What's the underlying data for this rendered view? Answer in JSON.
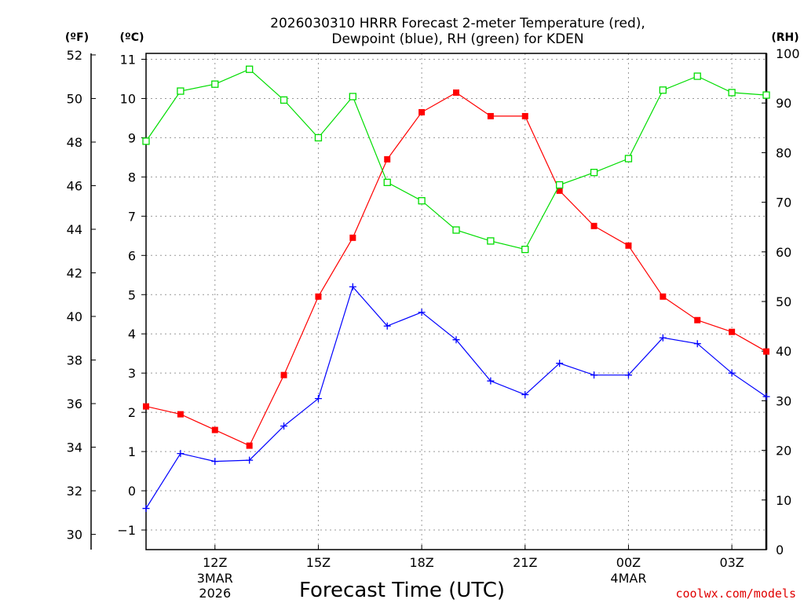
{
  "chart_data": {
    "type": "line",
    "title_line1": "2026030310 HRRR Forecast 2-meter Temperature (red),",
    "title_line2": "Dewpoint (blue), RH (green) for KDEN",
    "xlabel": "Forecast Time (UTC)",
    "watermark": "coolwx.com/models",
    "unit_labels": {
      "fahrenheit": "(ºF)",
      "celsius": "(ºC)",
      "rh": "(RH)"
    },
    "x_range": [
      9.0,
      27.0
    ],
    "celsius_range": [
      -1.5,
      11.15
    ],
    "rh_range": [
      0,
      100
    ],
    "celsius_ticks": [
      -1,
      0,
      1,
      2,
      3,
      4,
      5,
      6,
      7,
      8,
      9,
      10,
      11
    ],
    "fahrenheit_ticks": [
      30,
      32,
      34,
      36,
      38,
      40,
      42,
      44,
      46,
      48,
      50,
      52
    ],
    "rh_ticks": [
      0,
      10,
      20,
      30,
      40,
      50,
      60,
      70,
      80,
      90,
      100
    ],
    "x_ticks": [
      {
        "x": 11,
        "label": "12Z",
        "sub1": "3MAR",
        "sub2": "2026"
      },
      {
        "x": 14,
        "label": "15Z",
        "sub1": "",
        "sub2": ""
      },
      {
        "x": 17,
        "label": "18Z",
        "sub1": "",
        "sub2": ""
      },
      {
        "x": 20,
        "label": "21Z",
        "sub1": "",
        "sub2": ""
      },
      {
        "x": 23,
        "label": "00Z",
        "sub1": "4MAR",
        "sub2": ""
      },
      {
        "x": 26,
        "label": "03Z",
        "sub1": "",
        "sub2": ""
      }
    ],
    "x": [
      9,
      10,
      11,
      12,
      13,
      14,
      15,
      16,
      17,
      18,
      19,
      20,
      21,
      22,
      23,
      24,
      25,
      26,
      27
    ],
    "series": [
      {
        "name": "Temperature",
        "axis": "celsius",
        "color": "#ff0000",
        "marker": "filled-square",
        "values": [
          2.15,
          1.95,
          1.55,
          1.15,
          2.95,
          4.95,
          6.45,
          8.45,
          9.65,
          10.15,
          9.55,
          9.55,
          7.65,
          6.75,
          6.25,
          4.95,
          4.35,
          4.05,
          3.55
        ]
      },
      {
        "name": "Dewpoint",
        "axis": "celsius",
        "color": "#0000ff",
        "marker": "plus",
        "values": [
          -0.45,
          0.95,
          0.75,
          0.78,
          1.65,
          2.35,
          5.2,
          4.2,
          4.55,
          3.85,
          2.8,
          2.45,
          3.25,
          2.95,
          2.95,
          3.9,
          3.75,
          3.0,
          2.4
        ]
      },
      {
        "name": "RH",
        "axis": "rh",
        "color": "#00dd00",
        "marker": "open-square",
        "values": [
          82.3,
          92.4,
          93.8,
          96.8,
          90.6,
          83.0,
          91.3,
          74.0,
          70.3,
          64.4,
          62.2,
          60.5,
          73.5,
          76.0,
          78.8,
          92.6,
          95.4,
          92.1,
          91.6
        ]
      }
    ]
  }
}
